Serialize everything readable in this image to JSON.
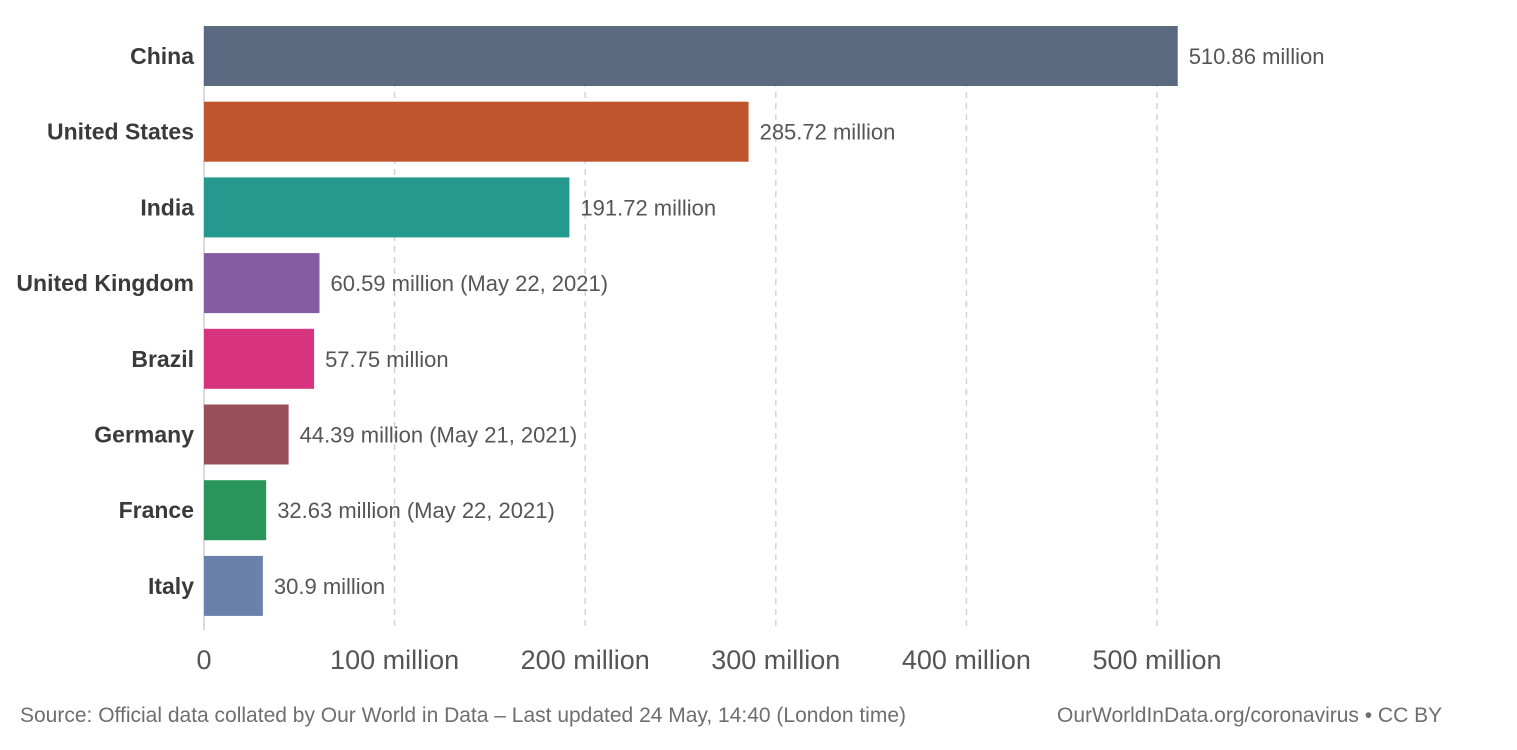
{
  "chart_data": {
    "type": "bar",
    "orientation": "horizontal",
    "categories": [
      "China",
      "United States",
      "India",
      "United Kingdom",
      "Brazil",
      "Germany",
      "France",
      "Italy"
    ],
    "values": [
      510.86,
      285.72,
      191.72,
      60.59,
      57.75,
      44.39,
      32.63,
      30.9
    ],
    "value_labels": [
      "510.86 million",
      "285.72 million",
      "191.72 million",
      "60.59 million (May 22, 2021)",
      "57.75 million",
      "44.39 million (May 21, 2021)",
      "32.63 million (May 22, 2021)",
      "30.9 million"
    ],
    "colors": [
      "#596a80",
      "#be552d",
      "#26998f",
      "#855ca2",
      "#d8337e",
      "#994f57",
      "#29955a",
      "#6a81ab"
    ],
    "xlim": [
      0,
      500
    ],
    "x_ticks": [
      0,
      100,
      200,
      300,
      400,
      500
    ],
    "x_tick_labels": [
      "0",
      "100 million",
      "200 million",
      "300 million",
      "400 million",
      "500 million"
    ],
    "grid": "vertical-dashed",
    "title": "",
    "xlabel": "",
    "ylabel": ""
  },
  "footer": {
    "source": "Source: Official data collated by Our World in Data – Last updated 24 May, 14:40 (London time)",
    "attribution": "OurWorldInData.org/coronavirus • CC BY"
  }
}
